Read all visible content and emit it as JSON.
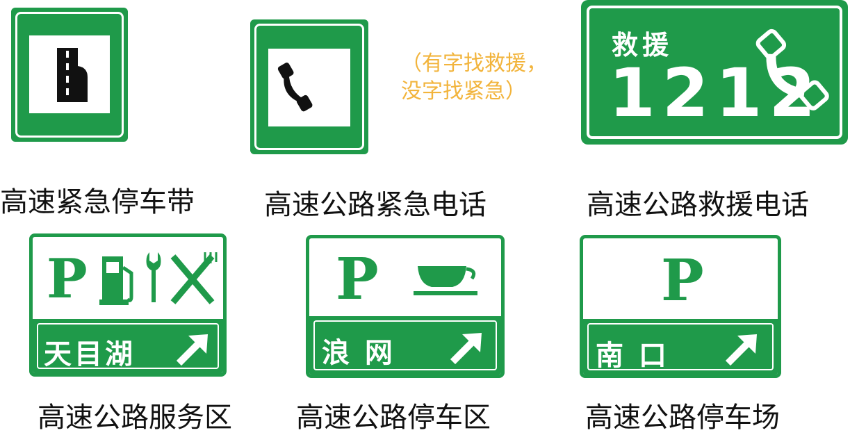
{
  "colors": {
    "sign_green": "#1f9a4a",
    "note_orange": "#f2b43c"
  },
  "signs": [
    {
      "caption": "高速紧急停车带",
      "icon": "emergency-lane-icon"
    },
    {
      "caption": "高速公路紧急电话",
      "icon": "phone-handset-icon"
    },
    {
      "caption": "高速公路救援电话",
      "icon": "phone-handset-icon",
      "label": "救援",
      "number": "1212"
    },
    {
      "caption": "高速公路服务区",
      "icons": [
        "parking-icon",
        "fuel-pump-icon",
        "wrench-icon",
        "fork-knife-icon"
      ],
      "place": "天目湖"
    },
    {
      "caption": "高速公路停车区",
      "icons": [
        "parking-icon",
        "coffee-cup-icon"
      ],
      "place": "浪 网"
    },
    {
      "caption": "高速公路停车场",
      "icons": [
        "parking-icon"
      ],
      "place": "南 口"
    }
  ],
  "note": {
    "line1": "（有字找救援，",
    "line2": "没字找紧急）"
  },
  "parking_letter": "P"
}
